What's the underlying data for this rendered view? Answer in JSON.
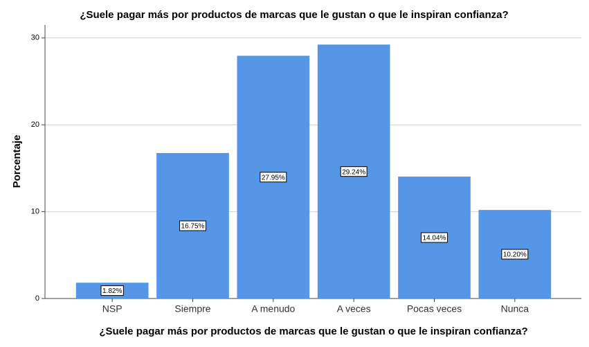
{
  "chart_data": {
    "type": "bar",
    "title": "¿Suele pagar más por productos de marcas que le gustan o que le inspiran confianza?",
    "x_label": "¿Suele pagar más por productos de marcas que le gustan o que le inspiran confianza?",
    "y_label": "Porcentaje",
    "categories": [
      "NSP",
      "Siempre",
      "A menudo",
      "A veces",
      "Pocas veces",
      "Nunca"
    ],
    "values": [
      1.82,
      16.75,
      27.95,
      29.24,
      14.04,
      10.2
    ],
    "value_labels": [
      "1.82%",
      "16.75%",
      "27.95%",
      "29.24%",
      "14.04%",
      "10.20%"
    ],
    "color": "#5596e6",
    "ylim": [
      0,
      31.5
    ],
    "yticks": [
      0,
      10,
      20,
      30
    ],
    "grid": true
  }
}
